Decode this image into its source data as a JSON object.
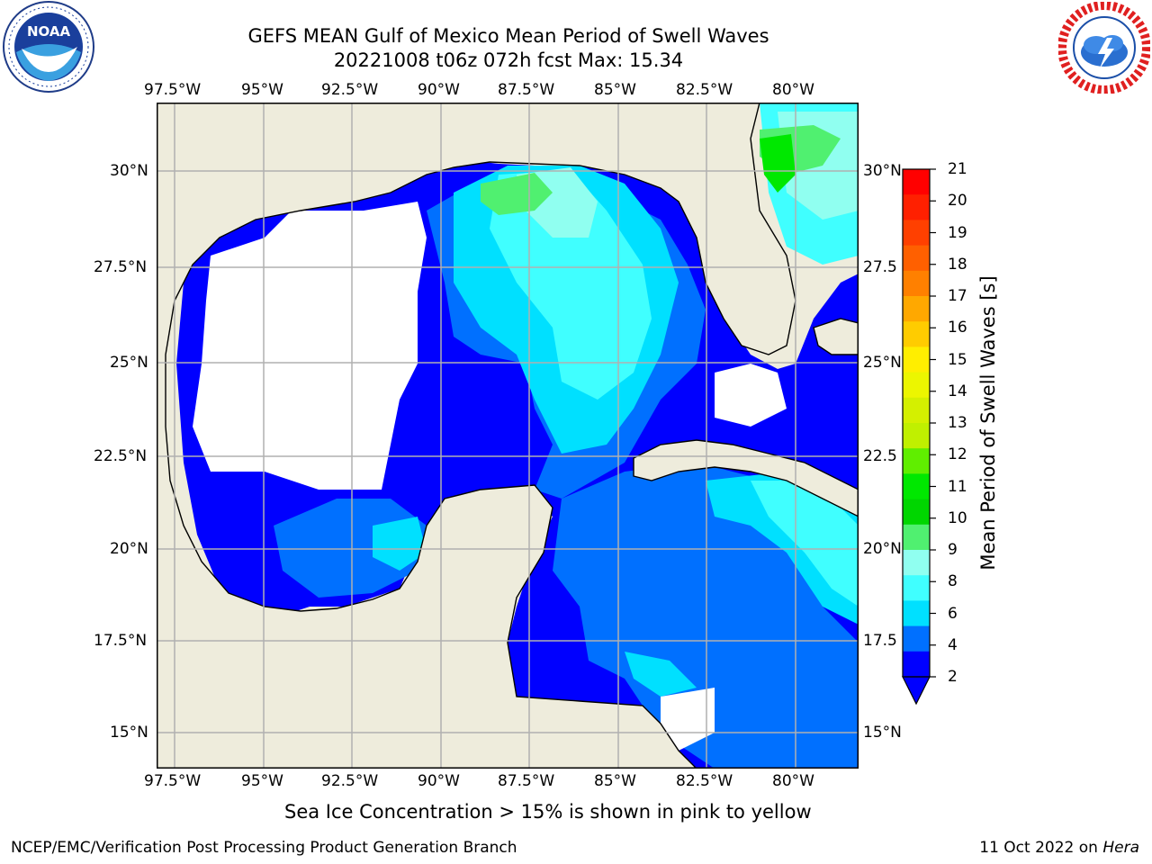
{
  "title": {
    "line1": "GEFS MEAN Gulf of Mexico Mean Period of Swell Waves",
    "line2": "20221008 t06z 072h fcst   Max: 15.34"
  },
  "logos": {
    "left": {
      "name": "NOAA",
      "ring_text": "NATIONAL OCEANIC AND ATMOSPHERIC ADMINISTRATION · U.S. DEPARTMENT OF COMMERCE"
    },
    "right": {
      "name": "NATIONAL WEATHER SERVICE"
    }
  },
  "map": {
    "lon_labels": [
      "97.5°W",
      "95°W",
      "92.5°W",
      "90°W",
      "87.5°W",
      "85°W",
      "82.5°W",
      "80°W"
    ],
    "lat_labels_left": [
      "30°N",
      "27.5°N",
      "25°N",
      "22.5°N",
      "20°N",
      "17.5°N",
      "15°N"
    ],
    "lat_labels_right": [
      "30°N",
      "27.5",
      "25°N",
      "22.5",
      "20°N",
      "17.5",
      "15°N"
    ],
    "land_color": "#eeecdc",
    "no_data_color": "#ffffff"
  },
  "colorbar": {
    "label": "Mean Period of Swell Waves [s]",
    "ticks": [
      "21",
      "20",
      "19",
      "18",
      "17",
      "16",
      "15",
      "14",
      "13",
      "12",
      "11",
      "10",
      "9",
      "8",
      "6",
      "4",
      "2"
    ],
    "colors": [
      "#ff0000",
      "#ff2000",
      "#ff4000",
      "#ff6000",
      "#ff8000",
      "#ffa800",
      "#ffcc00",
      "#ffee00",
      "#ecf600",
      "#d4f000",
      "#c0f000",
      "#60ee00",
      "#00e800",
      "#00d600",
      "#50f070",
      "#90fff0",
      "#40ffff",
      "#00e0ff",
      "#0070ff",
      "#0000ff"
    ]
  },
  "caption": "Sea Ice Concentration > 15% is shown in pink to yellow",
  "footer": {
    "left": "NCEP/EMC/Verification Post Processing Product Generation Branch",
    "date": "11 Oct 2022 on ",
    "machine": "Hera"
  }
}
